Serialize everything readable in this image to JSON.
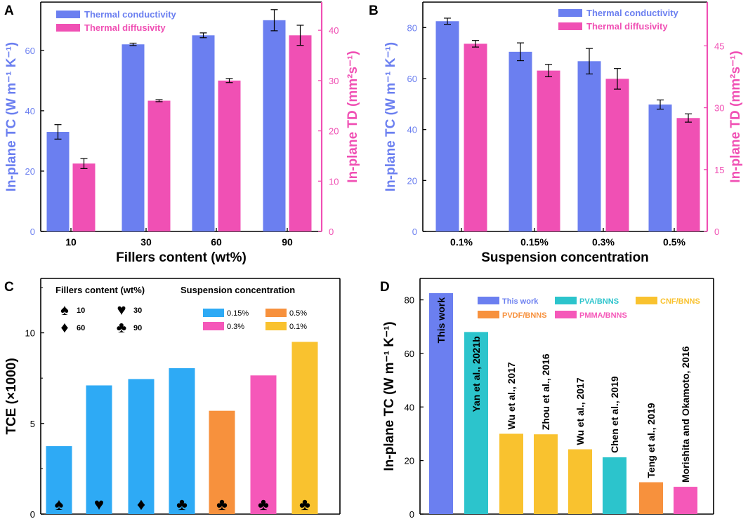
{
  "colors": {
    "tc": "#6b7ff0",
    "td": "#f050b4",
    "blue": "#2eaaf5",
    "orange": "#f7913d",
    "pink": "#f558b9",
    "yellow": "#f9c22f",
    "teal": "#2cc4cc"
  },
  "chart_data": [
    {
      "panel": "A",
      "type": "bar",
      "categories": [
        "10",
        "30",
        "60",
        "90"
      ],
      "xlabel": "Fillers content (wt%)",
      "ylabel": "In-plane TC (W m⁻¹ K⁻¹)",
      "ylabel2": "In-plane TD (mm²s⁻¹)",
      "ylim": [
        0,
        76
      ],
      "yticks": [
        "0",
        "20",
        "40",
        "60"
      ],
      "y2lim": [
        0,
        45.6
      ],
      "y2ticks": [
        "0",
        "10",
        "20",
        "30",
        "40"
      ],
      "legend": [
        "Thermal conductivity",
        "Thermal diffusivity"
      ],
      "series": [
        {
          "name": "Thermal conductivity",
          "axis": "left",
          "values": [
            33,
            62,
            65,
            70
          ],
          "errors": [
            2.4,
            0.4,
            0.8,
            3.5
          ]
        },
        {
          "name": "Thermal diffusivity",
          "axis": "right",
          "values": [
            13.5,
            26,
            30,
            39
          ],
          "errors": [
            1,
            0.2,
            0.4,
            2
          ]
        }
      ]
    },
    {
      "panel": "B",
      "type": "bar",
      "categories": [
        "0.1%",
        "0.15%",
        "0.3%",
        "0.5%"
      ],
      "xlabel": "Suspension concentration",
      "ylabel": "In-plane TC (W m⁻¹ K⁻¹)",
      "ylabel2": "In-plane TD (mm²s⁻¹)",
      "ylim": [
        0,
        90
      ],
      "yticks": [
        "0",
        "20",
        "40",
        "60",
        "80"
      ],
      "y2lim": [
        0,
        55.6
      ],
      "y2ticks": [
        "0",
        "15",
        "30",
        "45"
      ],
      "legend": [
        "Thermal conductivity",
        "Thermal diffusivity"
      ],
      "series": [
        {
          "name": "Thermal conductivity",
          "axis": "left",
          "values": [
            82.5,
            70.5,
            66.8,
            49.8
          ],
          "errors": [
            1.2,
            3.5,
            5,
            1.8
          ]
        },
        {
          "name": "Thermal diffusivity",
          "axis": "right",
          "values": [
            45.5,
            39,
            37,
            27.5
          ],
          "errors": [
            0.8,
            1.5,
            2.5,
            1
          ]
        }
      ]
    },
    {
      "panel": "C",
      "type": "bar",
      "ylabel": "TCE (×1000)",
      "ylim": [
        0,
        13
      ],
      "yticks": [
        "0",
        "5",
        "10"
      ],
      "legend_title_1": "Fillers content (wt%)",
      "legend_title_2": "Suspension concentration",
      "symbol_legend": [
        {
          "symbol": "♠",
          "label": "10"
        },
        {
          "symbol": "♥",
          "label": "30"
        },
        {
          "symbol": "♦",
          "label": "60"
        },
        {
          "symbol": "♣",
          "label": "90"
        }
      ],
      "color_legend": [
        {
          "label": "0.15%",
          "color": "#2eaaf5"
        },
        {
          "label": "0.5%",
          "color": "#f7913d"
        },
        {
          "label": "0.3%",
          "color": "#f558b9"
        },
        {
          "label": "0.1%",
          "color": "#f9c22f"
        }
      ],
      "bars": [
        {
          "value": 3.75,
          "color": "#2eaaf5",
          "symbol": "♠"
        },
        {
          "value": 7.1,
          "color": "#2eaaf5",
          "symbol": "♥"
        },
        {
          "value": 7.45,
          "color": "#2eaaf5",
          "symbol": "♦"
        },
        {
          "value": 8.05,
          "color": "#2eaaf5",
          "symbol": "♣"
        },
        {
          "value": 5.7,
          "color": "#f7913d",
          "symbol": "♣"
        },
        {
          "value": 7.65,
          "color": "#f558b9",
          "symbol": "♣"
        },
        {
          "value": 9.5,
          "color": "#f9c22f",
          "symbol": "♣"
        }
      ]
    },
    {
      "panel": "D",
      "type": "bar",
      "ylabel": "In-plane TC (W m⁻¹ K⁻¹)",
      "ylim": [
        0,
        88
      ],
      "yticks": [
        "0",
        "20",
        "40",
        "60",
        "80"
      ],
      "legend": [
        {
          "label": "This work",
          "color": "#6b7ff0",
          "text_color": "#6b7ff0"
        },
        {
          "label": "PVA/BNNS",
          "color": "#2cc4cc",
          "text_color": "#2cc4cc"
        },
        {
          "label": "CNF/BNNS",
          "color": "#f9c22f",
          "text_color": "#f9c22f"
        },
        {
          "label": "PVDF/BNNS",
          "color": "#f7913d",
          "text_color": "#f7913d"
        },
        {
          "label": "PMMA/BNNS",
          "color": "#f558b9",
          "text_color": "#f558b9"
        }
      ],
      "bars": [
        {
          "label": "This work",
          "value": 82.5,
          "color": "#6b7ff0",
          "inside": true
        },
        {
          "label": "Yan et al., 2021b",
          "value": 68,
          "color": "#2cc4cc",
          "inside": true
        },
        {
          "label": "Wu et al., 2017",
          "value": 30,
          "color": "#f9c22f",
          "inside": false
        },
        {
          "label": "Zhou et al., 2016",
          "value": 29.8,
          "color": "#f9c22f",
          "inside": false
        },
        {
          "label": "Wu et al., 2017",
          "value": 24.2,
          "color": "#f9c22f",
          "inside": false
        },
        {
          "label": "Chen et al., 2019",
          "value": 21.2,
          "color": "#2cc4cc",
          "inside": false
        },
        {
          "label": "Teng et al., 2019",
          "value": 11.9,
          "color": "#f7913d",
          "inside": false
        },
        {
          "label": "Morishita and Okamoto, 2016",
          "value": 10.2,
          "color": "#f558b9",
          "inside": false
        }
      ]
    }
  ]
}
